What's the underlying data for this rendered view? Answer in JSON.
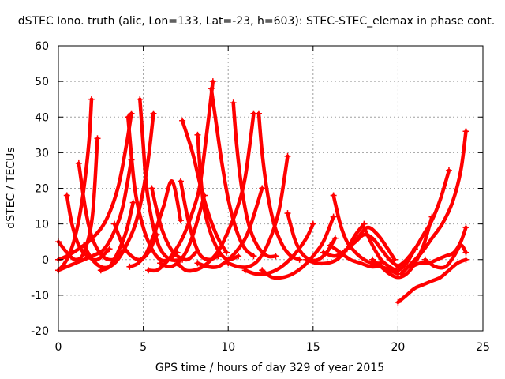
{
  "chart_data": {
    "type": "line",
    "title": "dSTEC Iono. truth (alic, Lon=133, Lat=-23, h=603): STEC-STEC_elemax in phase cont.",
    "xlabel": "GPS time / hours of day 329 of year 2015",
    "ylabel": "dSTEC  / TECUs",
    "xlim": [
      0,
      25
    ],
    "ylim": [
      -20,
      60
    ],
    "xticks": [
      0,
      5,
      10,
      15,
      20,
      25
    ],
    "yticks": [
      -20,
      -10,
      0,
      10,
      20,
      30,
      40,
      50,
      60
    ],
    "grid": true,
    "legend": "none",
    "color": "#ff0000",
    "series": [
      {
        "x": [
          0.0,
          0.3,
          0.6,
          0.9,
          1.2,
          1.5,
          1.8,
          1.95
        ],
        "y": [
          -3,
          -1.5,
          1,
          5,
          11,
          20,
          33,
          45
        ]
      },
      {
        "x": [
          0.0,
          0.5,
          1.0,
          1.5,
          2.0,
          2.3
        ],
        "y": [
          5,
          2,
          0,
          2,
          12,
          34
        ]
      },
      {
        "x": [
          0.5,
          0.8,
          1.2,
          1.7,
          2.3,
          3.0
        ],
        "y": [
          18,
          10,
          4,
          1,
          0,
          3
        ]
      },
      {
        "x": [
          0.0,
          0.5,
          1.2,
          2.0,
          2.8,
          3.5,
          4.0,
          4.3
        ],
        "y": [
          0,
          1,
          3,
          6,
          11,
          20,
          32,
          41
        ]
      },
      {
        "x": [
          0.0,
          1.0,
          2.0,
          2.7,
          3.3,
          3.8,
          4.3
        ],
        "y": [
          -3,
          -1,
          1,
          3,
          8,
          15,
          28
        ]
      },
      {
        "x": [
          1.2,
          1.6,
          2.0,
          2.6,
          3.2,
          3.7
        ],
        "y": [
          27,
          14,
          6,
          1,
          0,
          2
        ]
      },
      {
        "x": [
          1.5,
          2.0,
          2.5,
          3.0,
          3.5,
          4.0,
          4.6,
          5.2,
          5.6
        ],
        "y": [
          4,
          0,
          -2,
          -2,
          0,
          4,
          11,
          25,
          41
        ]
      },
      {
        "x": [
          2.5,
          3.0,
          3.5,
          4.0,
          4.4
        ],
        "y": [
          -3,
          -2,
          2,
          8,
          16
        ]
      },
      {
        "x": [
          3.3,
          3.8,
          4.3,
          4.8,
          5.3,
          5.8
        ],
        "y": [
          10,
          4,
          1,
          0,
          2,
          7
        ]
      },
      {
        "x": [
          4.1,
          4.5,
          5.0,
          5.5,
          6.0,
          6.5,
          7.0
        ],
        "y": [
          40,
          20,
          9,
          3,
          0,
          0,
          2
        ]
      },
      {
        "x": [
          4.8,
          5.0,
          5.2,
          5.6,
          6.0,
          6.6,
          7.3
        ],
        "y": [
          45,
          32,
          20,
          9,
          3,
          0,
          0
        ]
      },
      {
        "x": [
          4.2,
          4.7,
          5.2,
          5.7,
          6.2,
          6.7,
          7.2
        ],
        "y": [
          -2,
          -1,
          2,
          8,
          15,
          22,
          11
        ]
      },
      {
        "x": [
          5.5,
          6.0,
          6.5,
          7.0,
          7.6,
          8.1
        ],
        "y": [
          20,
          10,
          4,
          1,
          0,
          2
        ]
      },
      {
        "x": [
          5.3,
          5.8,
          6.3,
          6.8,
          7.3,
          7.8,
          8.3,
          8.7,
          9.1
        ],
        "y": [
          -3,
          -3,
          -1,
          2,
          6,
          12,
          20,
          34,
          50
        ]
      },
      {
        "x": [
          6.0,
          6.5,
          7.0,
          7.5,
          8.0,
          8.6
        ],
        "y": [
          -1,
          -2,
          -1,
          2,
          8,
          18
        ]
      },
      {
        "x": [
          7.2,
          7.6,
          8.0,
          8.4,
          8.9,
          9.4
        ],
        "y": [
          22,
          12,
          5,
          1,
          0,
          1
        ]
      },
      {
        "x": [
          7.0,
          7.5,
          8.0,
          8.5,
          9.0,
          9.5,
          10.0,
          10.5,
          11.0,
          11.5
        ],
        "y": [
          -1,
          -3,
          -3,
          -2,
          0,
          3,
          8,
          14,
          23,
          41
        ]
      },
      {
        "x": [
          7.3,
          7.9,
          8.4,
          8.9,
          9.4,
          9.9
        ],
        "y": [
          39,
          30,
          20,
          12,
          6,
          2
        ]
      },
      {
        "x": [
          8.2,
          8.4,
          8.6,
          9.0,
          9.5,
          10.0,
          10.6
        ],
        "y": [
          35,
          22,
          14,
          7,
          2,
          0,
          1
        ]
      },
      {
        "x": [
          8.2,
          8.8,
          9.4,
          10.0,
          10.6,
          11.2,
          12.0
        ],
        "y": [
          -1,
          -2,
          -2,
          0,
          3,
          8,
          20
        ]
      },
      {
        "x": [
          9.0,
          9.3,
          9.6,
          10.0,
          10.5,
          11.0,
          11.5
        ],
        "y": [
          48,
          38,
          28,
          17,
          8,
          3,
          1
        ]
      },
      {
        "x": [
          10.3,
          10.5,
          10.8,
          11.2,
          11.7,
          12.3,
          12.8
        ],
        "y": [
          44,
          32,
          20,
          10,
          4,
          1,
          1
        ]
      },
      {
        "x": [
          10.0,
          10.6,
          11.2,
          11.8,
          12.4,
          13.0,
          13.5
        ],
        "y": [
          -1,
          -2,
          -2,
          0,
          5,
          14,
          29
        ]
      },
      {
        "x": [
          11.8,
          12.0,
          12.3,
          12.7,
          13.2,
          13.7,
          14.2
        ],
        "y": [
          41,
          30,
          19,
          10,
          4,
          1,
          0
        ]
      },
      {
        "x": [
          11.0,
          11.6,
          12.2,
          12.8,
          13.4,
          14.0,
          14.6,
          15.0
        ],
        "y": [
          -3,
          -4,
          -4,
          -3,
          -1,
          2,
          6,
          10
        ]
      },
      {
        "x": [
          12.0,
          12.6,
          13.2,
          13.8,
          14.4,
          15.0,
          15.6,
          16.2
        ],
        "y": [
          -3,
          -5,
          -5,
          -4,
          -2,
          1,
          5,
          12
        ]
      },
      {
        "x": [
          13.5,
          13.9,
          14.3,
          14.8,
          15.3,
          15.8,
          16.3
        ],
        "y": [
          13,
          6,
          2,
          0,
          0,
          2,
          6
        ]
      },
      {
        "x": [
          14.6,
          15.2,
          15.8,
          16.4,
          17.0,
          17.5,
          18.0
        ],
        "y": [
          0,
          -1,
          -1,
          0,
          3,
          7,
          10
        ]
      },
      {
        "x": [
          16.2,
          16.6,
          17.0,
          17.5,
          18.0,
          18.5,
          19.0
        ],
        "y": [
          18,
          10,
          5,
          2,
          0,
          -1,
          -1
        ]
      },
      {
        "x": [
          16.0,
          16.6,
          17.2,
          17.8,
          18.4,
          19.0,
          19.5,
          20.0
        ],
        "y": [
          4,
          2,
          0,
          -1,
          -2,
          -2,
          -3,
          -4
        ]
      },
      {
        "x": [
          15.6,
          16.3,
          17.0,
          17.6,
          18.2,
          18.8,
          19.4,
          19.8
        ],
        "y": [
          2,
          1,
          3,
          6,
          9,
          7,
          3,
          0
        ]
      },
      {
        "x": [
          17.0,
          17.5,
          18.0,
          18.5,
          19.0,
          19.5,
          20.0
        ],
        "y": [
          3,
          5,
          7,
          6,
          3,
          0,
          -2
        ]
      },
      {
        "x": [
          18.0,
          18.5,
          19.0,
          19.5,
          20.0,
          20.5,
          21.0
        ],
        "y": [
          9,
          4,
          0,
          -2,
          -3,
          -1,
          3
        ]
      },
      {
        "x": [
          18.5,
          19.0,
          19.5,
          20.0,
          20.5,
          21.0,
          21.5,
          22.0
        ],
        "y": [
          0,
          -2,
          -4,
          -5,
          -4,
          -1,
          4,
          12
        ]
      },
      {
        "x": [
          20.0,
          20.5,
          21.0,
          21.5,
          22.0,
          22.5,
          23.0
        ],
        "y": [
          -2,
          0,
          3,
          7,
          11,
          17,
          25
        ]
      },
      {
        "x": [
          20.2,
          20.8,
          21.4,
          22.0,
          22.6,
          23.2,
          23.7,
          24.0
        ],
        "y": [
          -4,
          -1,
          2,
          6,
          10,
          16,
          25,
          36
        ]
      },
      {
        "x": [
          20.0,
          20.5,
          21.0,
          21.5,
          22.0,
          22.5,
          23.0,
          23.5,
          24.0
        ],
        "y": [
          -12,
          -10,
          -8,
          -7,
          -6,
          -5,
          -3,
          -1,
          0
        ]
      },
      {
        "x": [
          20.8,
          21.3,
          21.8,
          22.3,
          22.8,
          23.3,
          23.7,
          24.0
        ],
        "y": [
          -2,
          -1,
          -1,
          0,
          1,
          2,
          5,
          9
        ]
      },
      {
        "x": [
          21.6,
          22.2,
          22.8,
          23.3,
          23.7,
          24.0
        ],
        "y": [
          0,
          -2,
          -2,
          1,
          4,
          2
        ]
      }
    ]
  }
}
